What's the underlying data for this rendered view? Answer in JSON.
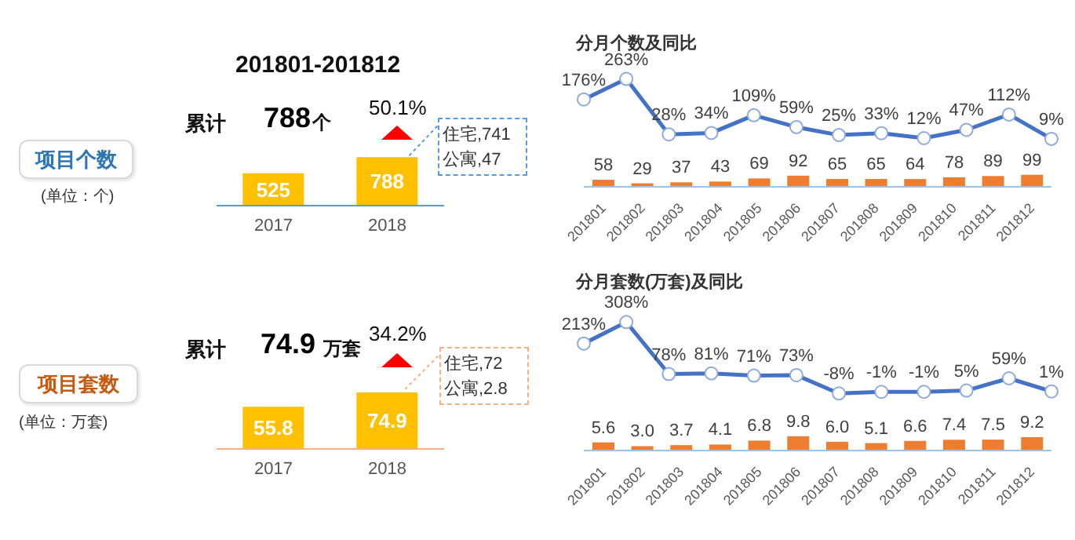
{
  "chart_data": [
    {
      "type": "bar",
      "title": "201801-201812",
      "categories": [
        "2017",
        "2018"
      ],
      "values": [
        525,
        788
      ],
      "color": "#ffc000",
      "data_labels": true,
      "annotations": [
        "项目个数",
        "(单位：个)",
        "累计",
        "788",
        "个",
        "50.1%",
        "住宅,741",
        "公寓,47"
      ]
    },
    {
      "type": "bar",
      "categories": [
        "2017",
        "2018"
      ],
      "values": [
        55.8,
        74.9
      ],
      "color": "#ffc000",
      "data_labels": true,
      "annotations": [
        "项目套数",
        "(单位：万套)",
        "累计",
        "74.9",
        "万套",
        "34.2%",
        "住宅,72",
        "公寓,2.8"
      ]
    },
    {
      "type": "bar",
      "categories": [
        "201801",
        "201802",
        "201803",
        "201804",
        "201805",
        "201806",
        "201807",
        "201808",
        "201809",
        "201810",
        "201811",
        "201812"
      ],
      "color": "#ed7d31",
      "values": [
        58,
        29,
        37,
        43,
        69,
        92,
        65,
        65,
        64,
        78,
        89,
        99
      ],
      "value_labels": [
        "58",
        "29",
        "37",
        "43",
        "69",
        "92",
        "65",
        "65",
        "64",
        "78",
        "89",
        "99"
      ]
    },
    {
      "type": "line",
      "title": "分月个数及同比",
      "categories": [
        null,
        null,
        null,
        null,
        null,
        null,
        null,
        null,
        null,
        null,
        null,
        null
      ],
      "marker": "circle",
      "color": "#4472c4",
      "values": [
        176,
        263,
        28,
        34,
        109,
        59,
        25,
        33,
        12,
        47,
        112,
        9
      ],
      "value_labels": [
        "176%",
        "263%",
        "28%",
        "34%",
        "109%",
        "59%",
        "25%",
        "33%",
        "12%",
        "47%",
        "112%",
        "9%"
      ]
    },
    {
      "type": "bar",
      "categories": [
        "201801",
        "201802",
        "201803",
        "201804",
        "201805",
        "201806",
        "201807",
        "201808",
        "201809",
        "201810",
        "201811",
        "201812"
      ],
      "color": "#ed7d31",
      "values": [
        5.6,
        3.0,
        3.7,
        4.1,
        6.8,
        9.8,
        6.0,
        5.1,
        6.6,
        7.4,
        7.5,
        9.2
      ],
      "value_labels": [
        "5.6",
        "3.0",
        "3.7",
        "4.1",
        "6.8",
        "9.8",
        "6.0",
        "5.1",
        "6.6",
        "7.4",
        "7.5",
        "9.2"
      ]
    },
    {
      "type": "line",
      "title": "分月套数(万套)及同比",
      "categories": [
        null,
        null,
        null,
        null,
        null,
        null,
        null,
        null,
        null,
        null,
        null,
        null
      ],
      "marker": "circle",
      "color": "#4472c4",
      "values": [
        213,
        308,
        78,
        81,
        71,
        73,
        -8,
        -1,
        -1,
        5,
        59,
        1
      ],
      "value_labels": [
        "213%",
        "308%",
        "78%",
        "81%",
        "71%",
        "73%",
        "-8%",
        "-1%",
        "-1%",
        "5%",
        "59%",
        "1%"
      ]
    }
  ]
}
